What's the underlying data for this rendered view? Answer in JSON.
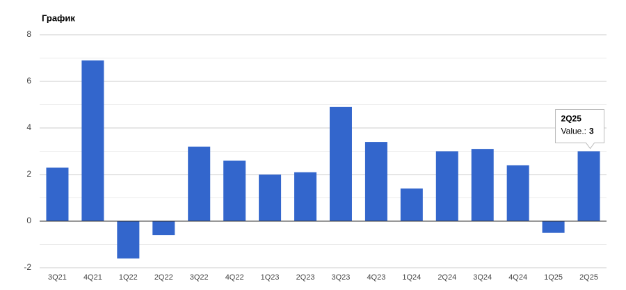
{
  "chart_data": {
    "type": "bar",
    "title": "График",
    "categories": [
      "3Q21",
      "4Q21",
      "1Q22",
      "2Q22",
      "3Q22",
      "4Q22",
      "1Q23",
      "2Q23",
      "3Q23",
      "4Q23",
      "1Q24",
      "2Q24",
      "3Q24",
      "4Q24",
      "1Q25",
      "2Q25"
    ],
    "values": [
      2.3,
      6.9,
      -1.6,
      -0.6,
      3.2,
      2.6,
      2.0,
      2.1,
      4.9,
      3.4,
      1.4,
      3.0,
      3.1,
      2.4,
      -0.5,
      3
    ],
    "color": "#3366cc",
    "ylim": [
      -2,
      8
    ],
    "yticks": [
      -2,
      0,
      2,
      4,
      6,
      8
    ],
    "minor_yticks": [
      -1,
      1,
      3,
      5,
      7
    ],
    "grid": true,
    "tooltip": {
      "index": 15,
      "label": "Value.:"
    }
  }
}
